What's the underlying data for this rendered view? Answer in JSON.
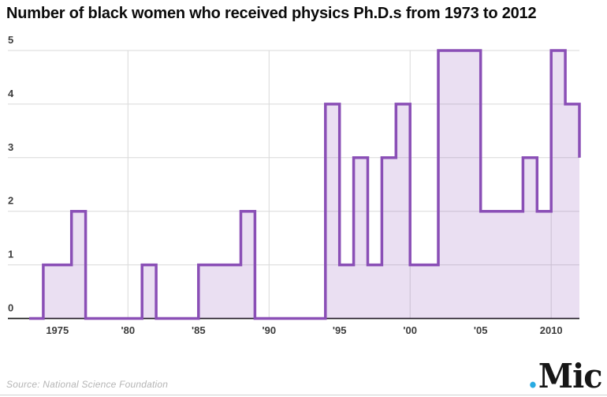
{
  "header": {
    "title": "Number of black women who received physics Ph.D.s from 1973 to 2012"
  },
  "chart_data": {
    "type": "area",
    "step": "after",
    "title": "Number of black women who received physics Ph.D.s from 1973 to 2012",
    "xlabel": "",
    "ylabel": "",
    "years": [
      1973,
      1974,
      1975,
      1976,
      1977,
      1978,
      1979,
      1980,
      1981,
      1982,
      1983,
      1984,
      1985,
      1986,
      1987,
      1988,
      1989,
      1990,
      1991,
      1992,
      1993,
      1994,
      1995,
      1996,
      1997,
      1998,
      1999,
      2000,
      2001,
      2002,
      2003,
      2004,
      2005,
      2006,
      2007,
      2008,
      2009,
      2010,
      2011,
      2012
    ],
    "values": [
      0,
      1,
      1,
      2,
      0,
      0,
      0,
      0,
      1,
      0,
      0,
      0,
      1,
      1,
      1,
      2,
      0,
      0,
      0,
      0,
      0,
      4,
      1,
      3,
      1,
      3,
      4,
      1,
      1,
      5,
      5,
      5,
      2,
      2,
      2,
      3,
      2,
      5,
      4,
      3
    ],
    "xlim": [
      1973,
      2012
    ],
    "ylim": [
      0,
      5
    ],
    "yticks": [
      0,
      1,
      2,
      3,
      4,
      5
    ],
    "xticks": [
      {
        "year": 1975,
        "label": "1975"
      },
      {
        "year": 1980,
        "label": "'80"
      },
      {
        "year": 1985,
        "label": "'85"
      },
      {
        "year": 1990,
        "label": "'90"
      },
      {
        "year": 1995,
        "label": "'95"
      },
      {
        "year": 2000,
        "label": "'00"
      },
      {
        "year": 2005,
        "label": "'05"
      },
      {
        "year": 2010,
        "label": "2010"
      }
    ],
    "grid": {
      "horizontal": true,
      "vertical_years": [
        1980,
        1990,
        2000,
        2010
      ]
    },
    "legend_position": "none",
    "colors": {
      "line": "#8a4fb6",
      "fill": "#8a4fb6",
      "fill_opacity": 0.18,
      "gridline": "#d9d9d9",
      "axis": "#1a1a1a",
      "tick_text": "#3c3c3c"
    }
  },
  "footer": {
    "source": "Source: National Science Foundation",
    "logo": {
      "dot": ".",
      "text": "Mic",
      "dot_color": "#29abe2"
    }
  }
}
